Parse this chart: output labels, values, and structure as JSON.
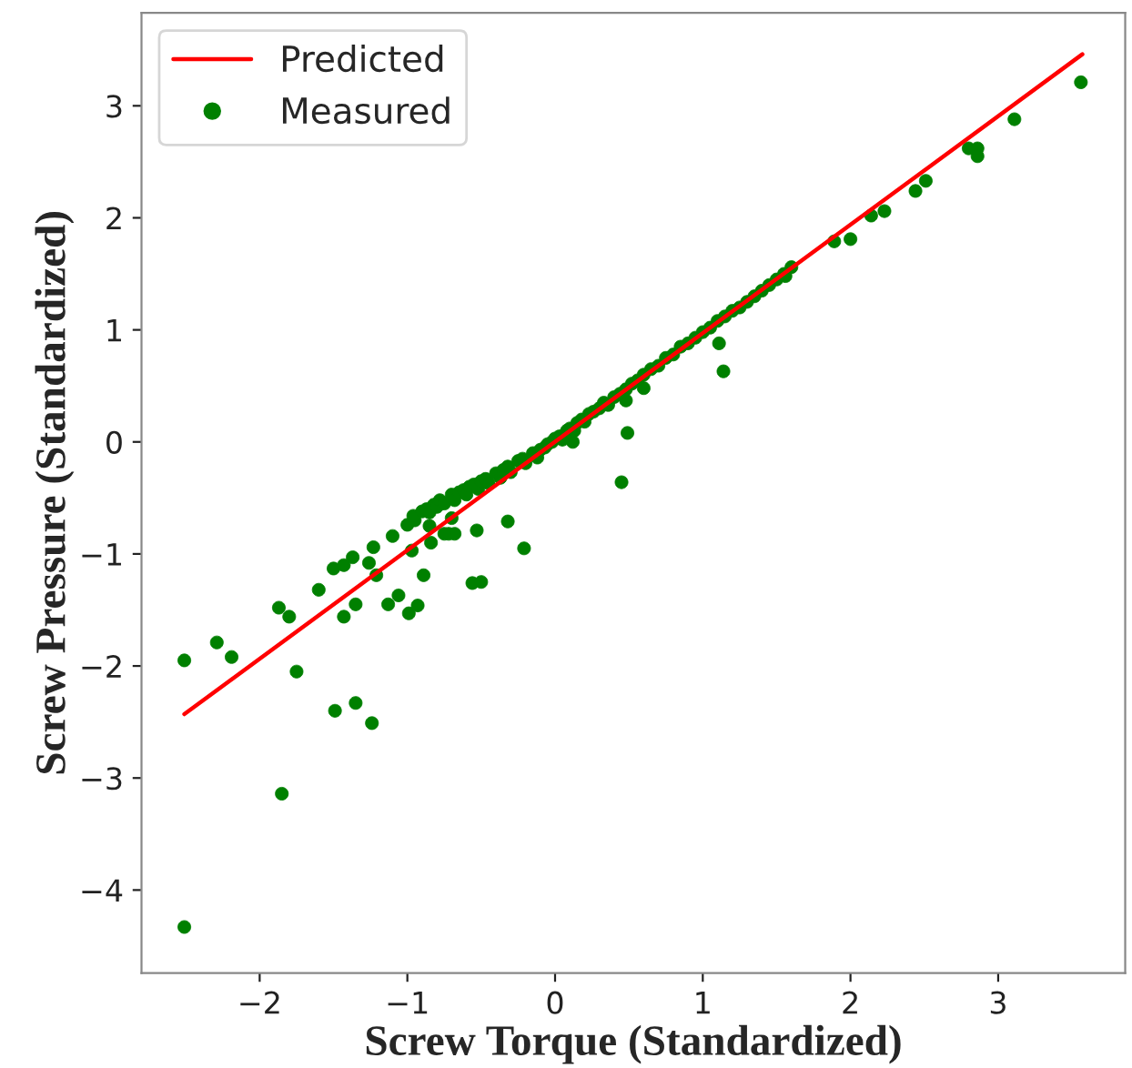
{
  "chart_data": {
    "type": "scatter",
    "xlabel": "Screw Torque (Standardized)",
    "ylabel": "Screw Pressure (Standardized)",
    "xlim": [
      -2.8,
      3.86
    ],
    "ylim": [
      -4.74,
      3.83
    ],
    "xticks": [
      -2,
      -1,
      0,
      1,
      2,
      3
    ],
    "yticks": [
      -4,
      -3,
      -2,
      -1,
      0,
      1,
      2,
      3
    ],
    "grid": false,
    "legend": "top left",
    "series": [
      {
        "name": "Predicted",
        "type": "line",
        "color": "#ff0000",
        "line_style": "solid",
        "x": [
          -2.51,
          3.57
        ],
        "values": [
          -2.43,
          3.46
        ]
      },
      {
        "name": "Measured",
        "type": "scatter",
        "color": "#008000",
        "marker": "circle",
        "x": [
          -2.51,
          -2.51,
          -2.29,
          -2.19,
          -1.87,
          -1.8,
          -1.75,
          -1.85,
          -1.6,
          -1.49,
          -1.35,
          -1.24,
          -1.5,
          -1.43,
          -1.37,
          -1.43,
          -1.35,
          -1.26,
          -1.23,
          -1.21,
          -1.13,
          -1.1,
          -1.06,
          -0.99,
          -0.93,
          -0.89,
          -0.97,
          -0.95,
          -0.84,
          -0.72,
          -0.68,
          -0.56,
          -0.5,
          -0.53,
          -0.32,
          -0.21,
          0.49,
          0.45,
          1.11,
          1.14,
          1.89,
          2.0,
          2.14,
          2.23,
          2.44,
          2.51,
          2.8,
          2.86,
          2.86,
          3.11,
          3.56,
          1.6,
          1.56,
          0.6,
          0.48,
          0.12,
          -0.85,
          -0.7,
          -0.75,
          -1.0,
          -0.96,
          -0.9,
          -0.87,
          -0.85,
          -0.82,
          -0.8,
          -0.78,
          -0.75,
          -0.7,
          -0.68,
          -0.65,
          -0.62,
          -0.6,
          -0.58,
          -0.55,
          -0.52,
          -0.5,
          -0.47,
          -0.45,
          -0.4,
          -0.37,
          -0.35,
          -0.32,
          -0.3,
          -0.25,
          -0.22,
          -0.2,
          -0.15,
          -0.12,
          -0.1,
          -0.07,
          -0.05,
          -0.02,
          0.0,
          0.03,
          0.05,
          0.08,
          0.1,
          0.13,
          0.15,
          0.18,
          0.2,
          0.23,
          0.26,
          0.3,
          0.33,
          0.36,
          0.4,
          0.44,
          0.48,
          0.52,
          0.56,
          0.6,
          0.65,
          0.7,
          0.75,
          0.8,
          0.85,
          0.9,
          0.95,
          1.0,
          1.05,
          1.1,
          1.15,
          1.2,
          1.25,
          1.3,
          1.35,
          1.4,
          1.45,
          1.5,
          1.55
        ],
        "values": [
          -1.95,
          -4.33,
          -1.79,
          -1.92,
          -1.48,
          -1.56,
          -2.05,
          -3.14,
          -1.32,
          -2.4,
          -2.33,
          -2.51,
          -1.13,
          -1.1,
          -1.03,
          -1.56,
          -1.45,
          -1.08,
          -0.94,
          -1.19,
          -1.45,
          -0.84,
          -1.37,
          -1.53,
          -1.46,
          -1.19,
          -0.97,
          -0.7,
          -0.9,
          -0.82,
          -0.82,
          -1.26,
          -1.25,
          -0.79,
          -0.71,
          -0.95,
          0.08,
          -0.36,
          0.88,
          0.63,
          1.79,
          1.81,
          2.02,
          2.06,
          2.24,
          2.33,
          2.62,
          2.62,
          2.55,
          2.88,
          3.21,
          1.56,
          1.48,
          0.48,
          0.37,
          0.0,
          -0.75,
          -0.68,
          -0.82,
          -0.74,
          -0.66,
          -0.62,
          -0.6,
          -0.63,
          -0.56,
          -0.58,
          -0.52,
          -0.55,
          -0.47,
          -0.52,
          -0.45,
          -0.43,
          -0.47,
          -0.4,
          -0.38,
          -0.42,
          -0.35,
          -0.33,
          -0.37,
          -0.28,
          -0.32,
          -0.25,
          -0.22,
          -0.27,
          -0.17,
          -0.15,
          -0.19,
          -0.1,
          -0.14,
          -0.07,
          -0.05,
          -0.02,
          0.0,
          0.03,
          0.05,
          0.02,
          0.1,
          0.12,
          0.1,
          0.17,
          0.2,
          0.18,
          0.25,
          0.27,
          0.3,
          0.35,
          0.33,
          0.4,
          0.43,
          0.47,
          0.52,
          0.55,
          0.6,
          0.65,
          0.68,
          0.75,
          0.78,
          0.85,
          0.88,
          0.93,
          0.98,
          1.02,
          1.08,
          1.12,
          1.17,
          1.2,
          1.25,
          1.3,
          1.35,
          1.4,
          1.45,
          1.5
        ]
      }
    ]
  }
}
